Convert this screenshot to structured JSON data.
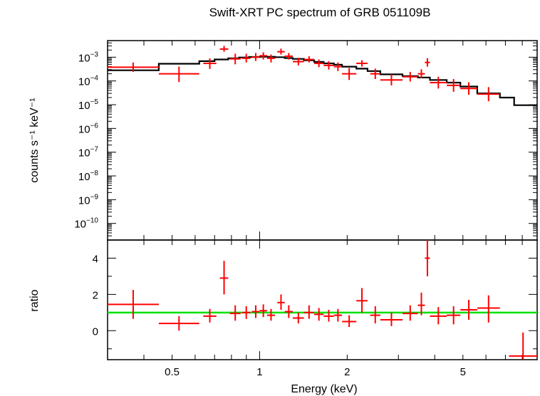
{
  "colors": {
    "data": "#ff0000",
    "model": "#000000",
    "unity": "#00e000",
    "axes": "#000000"
  },
  "chart_data": [
    {
      "type": "scatter",
      "panel": "spectrum",
      "title": "Swift-XRT PC spectrum of GRB 051109B",
      "xlabel": "Energy (keV)",
      "ylabel": "counts s⁻¹ keV⁻¹",
      "xscale": "log",
      "yscale": "log",
      "xlim": [
        0.3,
        9.0
      ],
      "ylim": [
        2e-11,
        0.005
      ],
      "ytick_labels": [
        {
          "value": 0.001,
          "base": "10",
          "exp": "−3"
        },
        {
          "value": 0.0001,
          "base": "10",
          "exp": "−4"
        },
        {
          "value": 1e-05,
          "base": "10",
          "exp": "−5"
        },
        {
          "value": 1e-06,
          "base": "10",
          "exp": "−6"
        },
        {
          "value": 1e-07,
          "base": "10",
          "exp": "−7"
        },
        {
          "value": 1e-08,
          "base": "10",
          "exp": "−8"
        },
        {
          "value": 1e-09,
          "base": "10",
          "exp": "−9"
        },
        {
          "value": 1e-10,
          "base": "10",
          "exp": "−10"
        }
      ],
      "series": [
        {
          "kind": "data",
          "color": "#ff0000",
          "points": [
            {
              "x0": 0.3,
              "x1": 0.45,
              "y": 0.00038,
              "ylo": 0.00024,
              "yhi": 0.0006
            },
            {
              "x0": 0.45,
              "x1": 0.62,
              "y": 0.0002,
              "ylo": 9e-05,
              "yhi": 0.0004
            },
            {
              "x0": 0.64,
              "x1": 0.71,
              "y": 0.00055,
              "ylo": 0.00032,
              "yhi": 0.0009
            },
            {
              "x0": 0.73,
              "x1": 0.78,
              "y": 0.0022,
              "ylo": 0.0017,
              "yhi": 0.003
            },
            {
              "x0": 0.79,
              "x1": 0.86,
              "y": 0.00085,
              "ylo": 0.0005,
              "yhi": 0.0014
            },
            {
              "x0": 0.87,
              "x1": 0.93,
              "y": 0.0009,
              "ylo": 0.0006,
              "yhi": 0.0014
            },
            {
              "x0": 0.94,
              "x1": 1.0,
              "y": 0.001,
              "ylo": 0.0007,
              "yhi": 0.0015
            },
            {
              "x0": 1.0,
              "x1": 1.06,
              "y": 0.00115,
              "ylo": 0.0008,
              "yhi": 0.0016
            },
            {
              "x0": 1.06,
              "x1": 1.13,
              "y": 0.0009,
              "ylo": 0.0006,
              "yhi": 0.0013
            },
            {
              "x0": 1.15,
              "x1": 1.22,
              "y": 0.0017,
              "ylo": 0.0013,
              "yhi": 0.0023
            },
            {
              "x0": 1.22,
              "x1": 1.3,
              "y": 0.0011,
              "ylo": 0.0008,
              "yhi": 0.0015
            },
            {
              "x0": 1.3,
              "x1": 1.42,
              "y": 0.00065,
              "ylo": 0.00045,
              "yhi": 0.00095
            },
            {
              "x0": 1.42,
              "x1": 1.54,
              "y": 0.0008,
              "ylo": 0.0006,
              "yhi": 0.0011
            },
            {
              "x0": 1.54,
              "x1": 1.66,
              "y": 0.00055,
              "ylo": 0.00038,
              "yhi": 0.0008
            },
            {
              "x0": 1.66,
              "x1": 1.8,
              "y": 0.00045,
              "ylo": 0.0003,
              "yhi": 0.00068
            },
            {
              "x0": 1.8,
              "x1": 1.92,
              "y": 0.0004,
              "ylo": 0.00026,
              "yhi": 0.0006
            },
            {
              "x0": 1.92,
              "x1": 2.15,
              "y": 0.0002,
              "ylo": 0.00011,
              "yhi": 0.00035
            },
            {
              "x0": 2.15,
              "x1": 2.35,
              "y": 0.00055,
              "ylo": 0.0004,
              "yhi": 0.00075
            },
            {
              "x0": 2.4,
              "x1": 2.6,
              "y": 0.0002,
              "ylo": 0.00012,
              "yhi": 0.00033
            },
            {
              "x0": 2.6,
              "x1": 3.1,
              "y": 0.00011,
              "ylo": 6.5e-05,
              "yhi": 0.00019
            },
            {
              "x0": 3.1,
              "x1": 3.5,
              "y": 0.00015,
              "ylo": 9.5e-05,
              "yhi": 0.00024
            },
            {
              "x0": 3.5,
              "x1": 3.7,
              "y": 0.0002,
              "ylo": 0.00013,
              "yhi": 0.00031
            },
            {
              "x0": 3.7,
              "x1": 3.85,
              "y": 0.0006,
              "ylo": 0.0004,
              "yhi": 0.0009
            },
            {
              "x0": 3.85,
              "x1": 4.4,
              "y": 8.5e-05,
              "ylo": 4.8e-05,
              "yhi": 0.00015
            },
            {
              "x0": 4.4,
              "x1": 4.9,
              "y": 6.5e-05,
              "ylo": 3.5e-05,
              "yhi": 0.00012
            },
            {
              "x0": 4.9,
              "x1": 5.6,
              "y": 4.8e-05,
              "ylo": 2.6e-05,
              "yhi": 8.8e-05
            },
            {
              "x0": 5.6,
              "x1": 6.7,
              "y": 2.8e-05,
              "ylo": 1.4e-05,
              "yhi": 5.5e-05
            }
          ]
        },
        {
          "kind": "model",
          "color": "#000000",
          "steps": [
            {
              "x0": 0.3,
              "x1": 0.45,
              "y": 0.00028
            },
            {
              "x0": 0.45,
              "x1": 0.62,
              "y": 0.00053
            },
            {
              "x0": 0.62,
              "x1": 0.7,
              "y": 0.00068
            },
            {
              "x0": 0.7,
              "x1": 0.78,
              "y": 0.0008
            },
            {
              "x0": 0.78,
              "x1": 0.85,
              "y": 0.0009
            },
            {
              "x0": 0.85,
              "x1": 0.92,
              "y": 0.00097
            },
            {
              "x0": 0.92,
              "x1": 1.0,
              "y": 0.00102
            },
            {
              "x0": 1.0,
              "x1": 1.06,
              "y": 0.00105
            },
            {
              "x0": 1.06,
              "x1": 1.13,
              "y": 0.00104
            },
            {
              "x0": 1.13,
              "x1": 1.22,
              "y": 0.001
            },
            {
              "x0": 1.22,
              "x1": 1.3,
              "y": 0.00092
            },
            {
              "x0": 1.3,
              "x1": 1.42,
              "y": 0.00085
            },
            {
              "x0": 1.42,
              "x1": 1.54,
              "y": 0.00074
            },
            {
              "x0": 1.54,
              "x1": 1.66,
              "y": 0.00064
            },
            {
              "x0": 1.66,
              "x1": 1.8,
              "y": 0.00055
            },
            {
              "x0": 1.8,
              "x1": 1.92,
              "y": 0.00048
            },
            {
              "x0": 1.92,
              "x1": 2.15,
              "y": 0.0004
            },
            {
              "x0": 2.15,
              "x1": 2.35,
              "y": 0.00033
            },
            {
              "x0": 2.35,
              "x1": 2.6,
              "y": 0.00026
            },
            {
              "x0": 2.6,
              "x1": 3.1,
              "y": 0.00019
            },
            {
              "x0": 3.1,
              "x1": 3.5,
              "y": 0.00016
            },
            {
              "x0": 3.5,
              "x1": 3.85,
              "y": 0.00014
            },
            {
              "x0": 3.85,
              "x1": 4.4,
              "y": 0.00011
            },
            {
              "x0": 4.4,
              "x1": 4.9,
              "y": 8.5e-05
            },
            {
              "x0": 4.9,
              "x1": 5.6,
              "y": 5.8e-05
            },
            {
              "x0": 5.6,
              "x1": 6.7,
              "y": 3e-05
            },
            {
              "x0": 6.7,
              "x1": 7.5,
              "y": 2e-05
            },
            {
              "x0": 7.5,
              "x1": 9.0,
              "y": 9.5e-06
            }
          ]
        }
      ]
    },
    {
      "type": "scatter",
      "panel": "ratio",
      "xlabel": "Energy (keV)",
      "ylabel": "ratio",
      "xscale": "log",
      "yscale": "linear",
      "xlim": [
        0.3,
        9.0
      ],
      "ylim": [
        -1.6,
        5.0
      ],
      "xtick_labels": [
        {
          "value": 0.5,
          "label": "0.5"
        },
        {
          "value": 1,
          "label": "1"
        },
        {
          "value": 2,
          "label": "2"
        },
        {
          "value": 5,
          "label": "5"
        }
      ],
      "ytick_labels": [
        {
          "value": 0,
          "label": "0"
        },
        {
          "value": 2,
          "label": "2"
        },
        {
          "value": 4,
          "label": "4"
        }
      ],
      "reference_line": {
        "y": 1,
        "color": "#00e000"
      },
      "series": [
        {
          "kind": "data",
          "color": "#ff0000",
          "points": [
            {
              "x0": 0.3,
              "x1": 0.45,
              "y": 1.45,
              "ylo": 0.65,
              "yhi": 2.25
            },
            {
              "x0": 0.45,
              "x1": 0.62,
              "y": 0.4,
              "ylo": 0.0,
              "yhi": 0.8
            },
            {
              "x0": 0.64,
              "x1": 0.71,
              "y": 0.8,
              "ylo": 0.45,
              "yhi": 1.2
            },
            {
              "x0": 0.73,
              "x1": 0.78,
              "y": 2.9,
              "ylo": 2.0,
              "yhi": 3.85
            },
            {
              "x0": 0.79,
              "x1": 0.86,
              "y": 0.95,
              "ylo": 0.55,
              "yhi": 1.4
            },
            {
              "x0": 0.87,
              "x1": 0.93,
              "y": 1.0,
              "ylo": 0.65,
              "yhi": 1.35
            },
            {
              "x0": 0.94,
              "x1": 1.0,
              "y": 1.05,
              "ylo": 0.7,
              "yhi": 1.4
            },
            {
              "x0": 1.0,
              "x1": 1.06,
              "y": 1.1,
              "ylo": 0.75,
              "yhi": 1.45
            },
            {
              "x0": 1.06,
              "x1": 1.13,
              "y": 0.85,
              "ylo": 0.55,
              "yhi": 1.2
            },
            {
              "x0": 1.15,
              "x1": 1.22,
              "y": 1.55,
              "ylo": 1.15,
              "yhi": 2.0
            },
            {
              "x0": 1.22,
              "x1": 1.3,
              "y": 1.05,
              "ylo": 0.7,
              "yhi": 1.4
            },
            {
              "x0": 1.3,
              "x1": 1.42,
              "y": 0.7,
              "ylo": 0.4,
              "yhi": 1.0
            },
            {
              "x0": 1.42,
              "x1": 1.54,
              "y": 1.0,
              "ylo": 0.65,
              "yhi": 1.4
            },
            {
              "x0": 1.54,
              "x1": 1.66,
              "y": 0.9,
              "ylo": 0.55,
              "yhi": 1.25
            },
            {
              "x0": 1.66,
              "x1": 1.8,
              "y": 0.8,
              "ylo": 0.5,
              "yhi": 1.15
            },
            {
              "x0": 1.8,
              "x1": 1.92,
              "y": 0.85,
              "ylo": 0.5,
              "yhi": 1.2
            },
            {
              "x0": 1.92,
              "x1": 2.15,
              "y": 0.5,
              "ylo": 0.2,
              "yhi": 0.85
            },
            {
              "x0": 2.15,
              "x1": 2.35,
              "y": 1.65,
              "ylo": 1.0,
              "yhi": 2.35
            },
            {
              "x0": 2.4,
              "x1": 2.6,
              "y": 0.85,
              "ylo": 0.4,
              "yhi": 1.35
            },
            {
              "x0": 2.6,
              "x1": 3.1,
              "y": 0.6,
              "ylo": 0.25,
              "yhi": 1.0
            },
            {
              "x0": 3.1,
              "x1": 3.5,
              "y": 0.95,
              "ylo": 0.55,
              "yhi": 1.4
            },
            {
              "x0": 3.5,
              "x1": 3.7,
              "y": 1.4,
              "ylo": 0.85,
              "yhi": 2.1
            },
            {
              "x0": 3.7,
              "x1": 3.85,
              "y": 4.0,
              "ylo": 3.0,
              "yhi": 5.0
            },
            {
              "x0": 3.85,
              "x1": 4.4,
              "y": 0.8,
              "ylo": 0.35,
              "yhi": 1.3
            },
            {
              "x0": 4.4,
              "x1": 4.9,
              "y": 0.85,
              "ylo": 0.35,
              "yhi": 1.35
            },
            {
              "x0": 4.9,
              "x1": 5.6,
              "y": 1.15,
              "ylo": 0.6,
              "yhi": 1.7
            },
            {
              "x0": 5.6,
              "x1": 6.7,
              "y": 1.25,
              "ylo": 0.45,
              "yhi": 1.95
            },
            {
              "x0": 7.2,
              "x1": 9.0,
              "y": -1.4,
              "ylo": -1.6,
              "yhi": -0.1
            }
          ]
        }
      ]
    }
  ]
}
